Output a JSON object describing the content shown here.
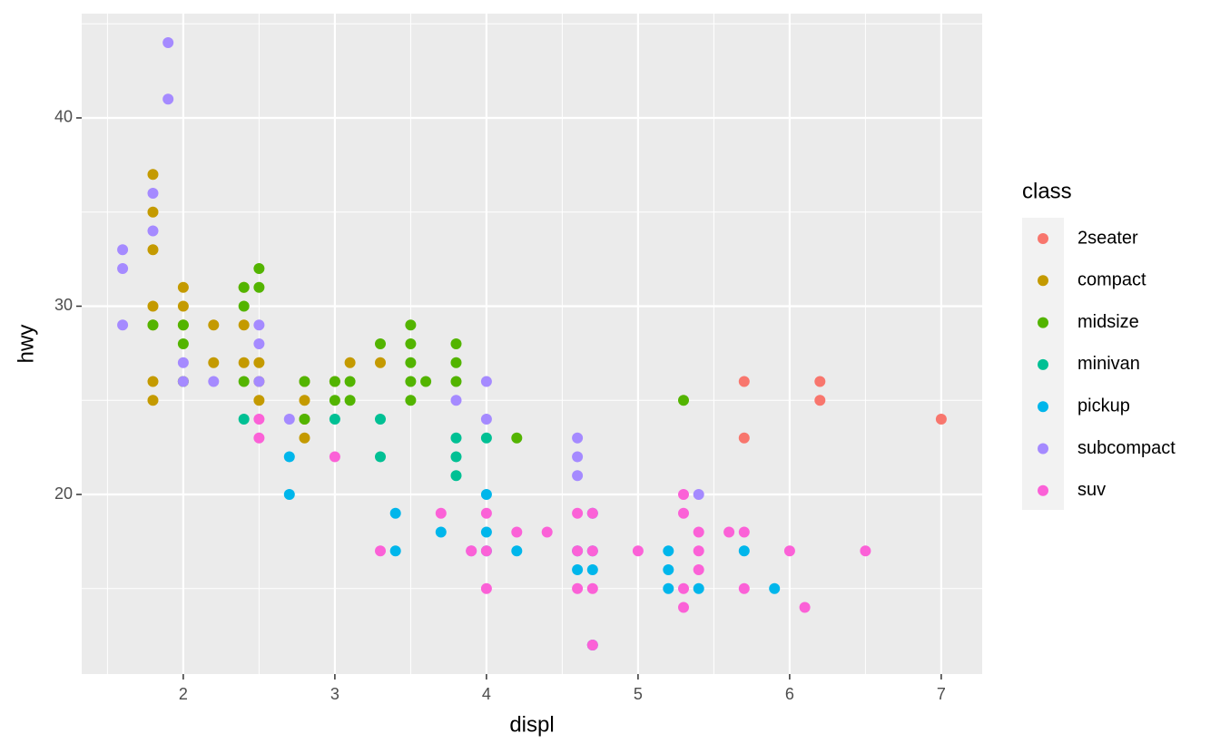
{
  "chart_data": {
    "type": "scatter",
    "xlabel": "displ",
    "ylabel": "hwy",
    "legend_title": "class",
    "legend": "right",
    "grid": true,
    "xlim": [
      1.33,
      7.27
    ],
    "ylim": [
      10.46,
      45.54
    ],
    "xticks": [
      2,
      3,
      4,
      5,
      6,
      7
    ],
    "yticks": [
      20,
      30,
      40
    ],
    "series": [
      {
        "name": "2seater",
        "color": "#F8766D",
        "x": [
          5.7,
          5.7,
          6.2,
          6.2,
          7.0
        ],
        "values": [
          26,
          23,
          26,
          25,
          24
        ]
      },
      {
        "name": "compact",
        "color": "#C49A00",
        "x": [
          1.8,
          1.8,
          1.8,
          1.8,
          1.8,
          1.8,
          1.8,
          2.0,
          2.0,
          2.0,
          2.0,
          2.2,
          2.2,
          2.4,
          2.4,
          2.4,
          2.5,
          2.5,
          2.5,
          2.8,
          2.8,
          2.8,
          2.8,
          3.0,
          3.1,
          3.3
        ],
        "values": [
          37,
          35,
          33,
          30,
          29,
          26,
          25,
          31,
          30,
          29,
          26,
          29,
          27,
          31,
          29,
          27,
          27,
          25,
          26,
          26,
          25,
          24,
          23,
          26,
          27,
          27
        ]
      },
      {
        "name": "midsize",
        "color": "#53B400",
        "x": [
          1.8,
          2.0,
          2.0,
          2.0,
          2.4,
          2.4,
          2.4,
          2.5,
          2.5,
          2.8,
          2.8,
          3.0,
          3.0,
          3.1,
          3.1,
          3.3,
          3.5,
          3.5,
          3.5,
          3.5,
          3.5,
          3.6,
          3.8,
          3.8,
          3.8,
          4.2,
          5.3
        ],
        "values": [
          29,
          29,
          28,
          26,
          31,
          30,
          26,
          32,
          31,
          26,
          24,
          26,
          25,
          26,
          25,
          28,
          29,
          28,
          27,
          26,
          25,
          26,
          28,
          27,
          26,
          23,
          25
        ]
      },
      {
        "name": "minivan",
        "color": "#00C094",
        "x": [
          2.4,
          3.0,
          3.3,
          3.3,
          3.8,
          3.8,
          3.8,
          4.0
        ],
        "values": [
          24,
          24,
          24,
          22,
          23,
          22,
          21,
          23
        ]
      },
      {
        "name": "pickup",
        "color": "#00B6EB",
        "x": [
          2.7,
          2.7,
          3.4,
          3.4,
          3.7,
          4.0,
          4.0,
          4.0,
          4.2,
          4.6,
          4.6,
          4.7,
          4.7,
          4.7,
          4.7,
          5.2,
          5.2,
          5.2,
          5.4,
          5.7,
          5.9
        ],
        "values": [
          22,
          20,
          19,
          17,
          18,
          20,
          18,
          17,
          17,
          17,
          16,
          19,
          17,
          16,
          12,
          17,
          16,
          15,
          15,
          17,
          15
        ]
      },
      {
        "name": "subcompact",
        "color": "#A58AFF",
        "x": [
          1.6,
          1.6,
          1.6,
          1.8,
          1.8,
          1.9,
          1.9,
          2.0,
          2.0,
          2.2,
          2.5,
          2.5,
          2.5,
          2.7,
          3.8,
          3.9,
          4.0,
          4.0,
          4.6,
          4.6,
          4.6,
          5.4
        ],
        "values": [
          33,
          32,
          29,
          36,
          34,
          44,
          41,
          27,
          26,
          26,
          29,
          28,
          26,
          24,
          25,
          17,
          26,
          24,
          23,
          22,
          21,
          20
        ]
      },
      {
        "name": "suv",
        "color": "#FB61D7",
        "x": [
          2.5,
          2.5,
          3.0,
          3.3,
          3.7,
          3.9,
          4.0,
          4.0,
          4.0,
          4.2,
          4.4,
          4.6,
          4.6,
          4.6,
          4.7,
          4.7,
          4.7,
          4.7,
          5.0,
          5.3,
          5.3,
          5.3,
          5.3,
          5.4,
          5.4,
          5.4,
          5.6,
          5.7,
          5.7,
          6.0,
          6.1,
          6.5
        ],
        "values": [
          24,
          23,
          22,
          17,
          19,
          17,
          19,
          17,
          15,
          18,
          18,
          19,
          17,
          15,
          19,
          17,
          15,
          12,
          17,
          20,
          19,
          15,
          14,
          18,
          17,
          16,
          18,
          18,
          15,
          17,
          14,
          17
        ]
      }
    ]
  }
}
